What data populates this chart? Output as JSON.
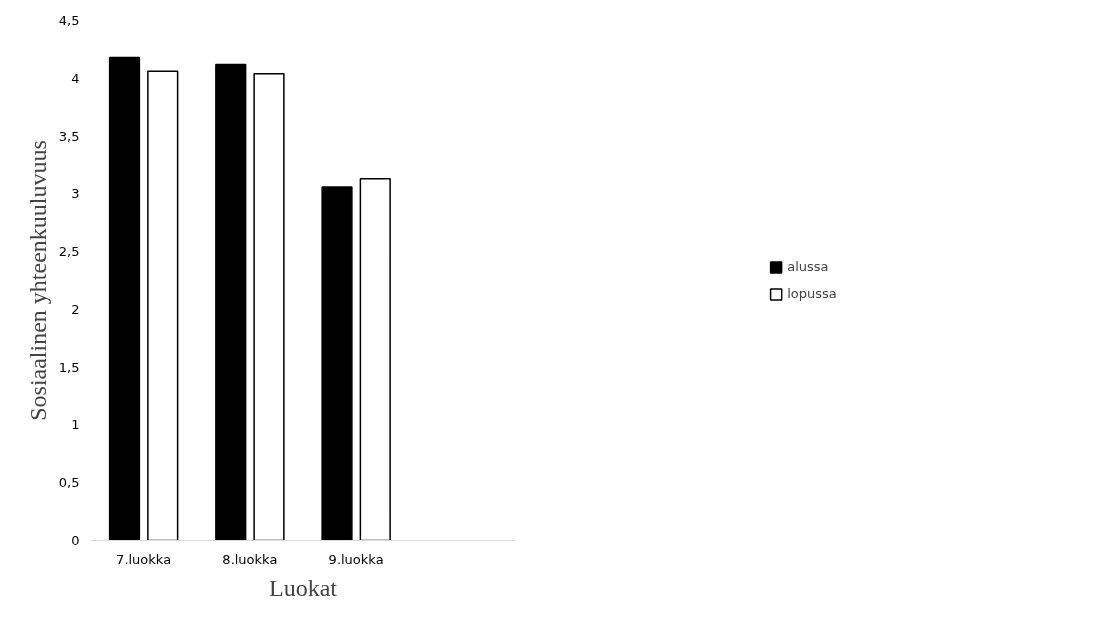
{
  "chart_data": {
    "type": "bar",
    "xlabel": "Luokat",
    "ylabel": "Sosiaalinen yhteenkuuluvuus",
    "categories": [
      "7.luokka",
      "8.luokka",
      "9.luokka",
      null
    ],
    "series": [
      {
        "name": "alussa",
        "color": "#000000",
        "values": [
          4.18,
          4.12,
          3.06,
          null
        ]
      },
      {
        "name": "lopussa",
        "color": "#ffffff",
        "values": [
          4.06,
          4.04,
          3.13,
          null
        ]
      }
    ],
    "ylim": [
      0,
      4.5
    ],
    "yticks": [
      0,
      {
        "value": 0.5,
        "label": "0,5"
      },
      1,
      {
        "value": 1.5,
        "label": "1,5"
      },
      2,
      {
        "value": 2.5,
        "label": "2,5"
      },
      3,
      {
        "value": 3.5,
        "label": "3,5"
      },
      4,
      {
        "value": 4.5,
        "label": "4,5"
      }
    ],
    "grid": false,
    "legend": "right"
  }
}
